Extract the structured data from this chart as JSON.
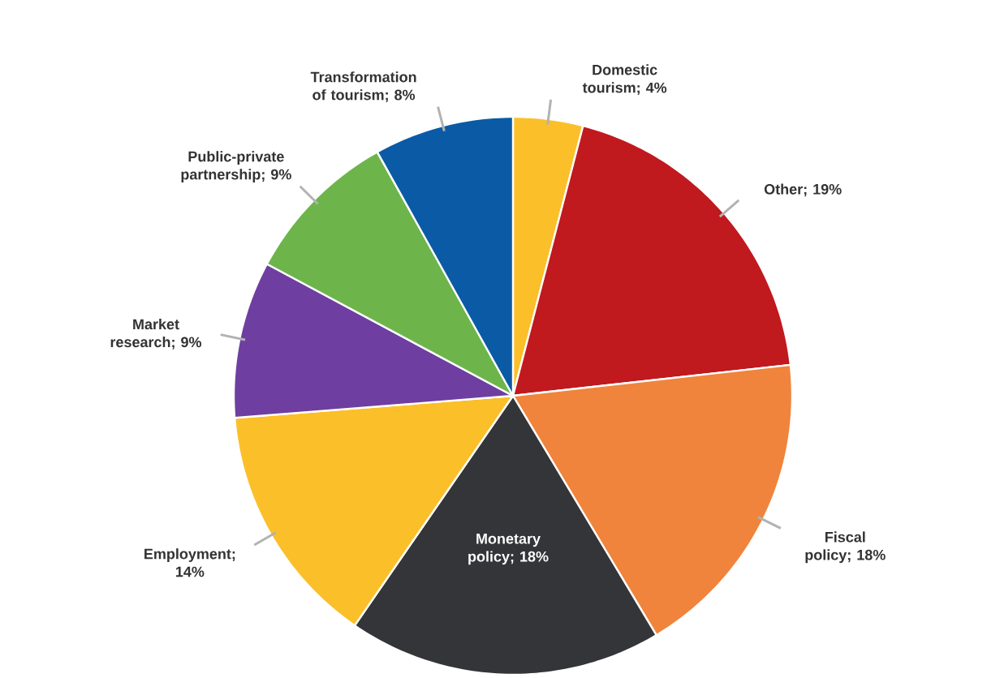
{
  "chart_data": {
    "type": "pie",
    "categories": [
      "Domestic tourism",
      "Other",
      "Fiscal policy",
      "Monetary policy",
      "Employment",
      "Market research",
      "Public-private partnership",
      "Transformation of tourism"
    ],
    "values": [
      4,
      19,
      18,
      18,
      14,
      9,
      9,
      8
    ],
    "value_labels": [
      "; 4%",
      "; 19%",
      "; 18%",
      "; 18%",
      "; 14%",
      "; 9%",
      "; 9%",
      "; 8%"
    ],
    "colors": [
      "#fbbf2a",
      "#c0191e",
      "#f0843c",
      "#333538",
      "#fbbf2a",
      "#6e3fa0",
      "#6db54b",
      "#0b5aa6"
    ]
  }
}
